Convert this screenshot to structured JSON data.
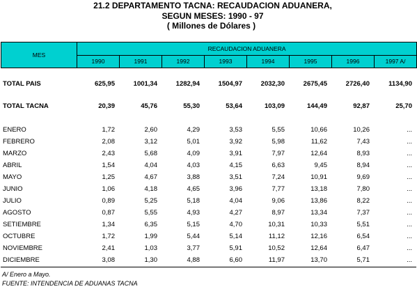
{
  "title": {
    "line1": "21.2  DEPARTAMENTO  TACNA:  RECAUDACION ADUANERA,",
    "line2": "SEGUN MESES: 1990 - 97",
    "line3": "( Millones de Dólares )"
  },
  "header": {
    "mes": "MES",
    "group": "RECAUDACION ADUANERA",
    "years": [
      "1990",
      "1991",
      "1992",
      "1993",
      "1994",
      "1995",
      "1996",
      "1997 A/"
    ]
  },
  "totals": [
    {
      "label": "TOTAL  PAIS",
      "values": [
        "625,95",
        "1001,34",
        "1282,94",
        "1504,97",
        "2032,30",
        "2675,45",
        "2726,40",
        "1134,90"
      ]
    },
    {
      "label": "TOTAL TACNA",
      "values": [
        "20,39",
        "45,76",
        "55,30",
        "53,64",
        "103,09",
        "144,49",
        "92,87",
        "25,70"
      ]
    }
  ],
  "months": [
    {
      "label": "ENERO",
      "values": [
        "1,72",
        "2,60",
        "4,29",
        "3,53",
        "5,55",
        "10,66",
        "10,26",
        "..."
      ]
    },
    {
      "label": "FEBRERO",
      "values": [
        "2,08",
        "3,12",
        "5,01",
        "3,92",
        "5,98",
        "11,62",
        "7,43",
        "..."
      ]
    },
    {
      "label": "MARZO",
      "values": [
        "2,43",
        "5,68",
        "4,09",
        "3,91",
        "7,97",
        "12,64",
        "8,93",
        "..."
      ]
    },
    {
      "label": "ABRIL",
      "values": [
        "1,54",
        "4,04",
        "4,03",
        "4,15",
        "6,63",
        "9,45",
        "8,94",
        "..."
      ]
    },
    {
      "label": "MAYO",
      "values": [
        "1,25",
        "4,67",
        "3,88",
        "3,51",
        "7,24",
        "10,91",
        "9,69",
        "..."
      ]
    },
    {
      "label": "JUNIO",
      "values": [
        "1,06",
        "4,18",
        "4,65",
        "3,96",
        "7,77",
        "13,18",
        "7,80",
        "..."
      ]
    },
    {
      "label": "JULIO",
      "values": [
        "0,89",
        "5,25",
        "5,18",
        "4,04",
        "9,06",
        "13,86",
        "8,22",
        "..."
      ]
    },
    {
      "label": "AGOSTO",
      "values": [
        "0,87",
        "5,55",
        "4,93",
        "4,27",
        "8,97",
        "13,34",
        "7,37",
        "..."
      ]
    },
    {
      "label": "SETIEMBRE",
      "values": [
        "1,34",
        "6,35",
        "5,15",
        "4,70",
        "10,31",
        "10,33",
        "5,51",
        "..."
      ]
    },
    {
      "label": "OCTUBRE",
      "values": [
        "1,72",
        "1,99",
        "5,44",
        "5,14",
        "11,12",
        "12,16",
        "6,54",
        "..."
      ]
    },
    {
      "label": "NOVIEMBRE",
      "values": [
        "2,41",
        "1,03",
        "3,77",
        "5,91",
        "10,52",
        "12,64",
        "6,47",
        "..."
      ]
    },
    {
      "label": "DICIEMBRE",
      "values": [
        "3,08",
        "1,30",
        "4,88",
        "6,60",
        "11,97",
        "13,70",
        "5,71",
        "..."
      ]
    }
  ],
  "notes": {
    "footnote": "A/  Enero a Mayo.",
    "source": "FUENTE: INTENDENCIA DE ADUANAS TACNA"
  }
}
